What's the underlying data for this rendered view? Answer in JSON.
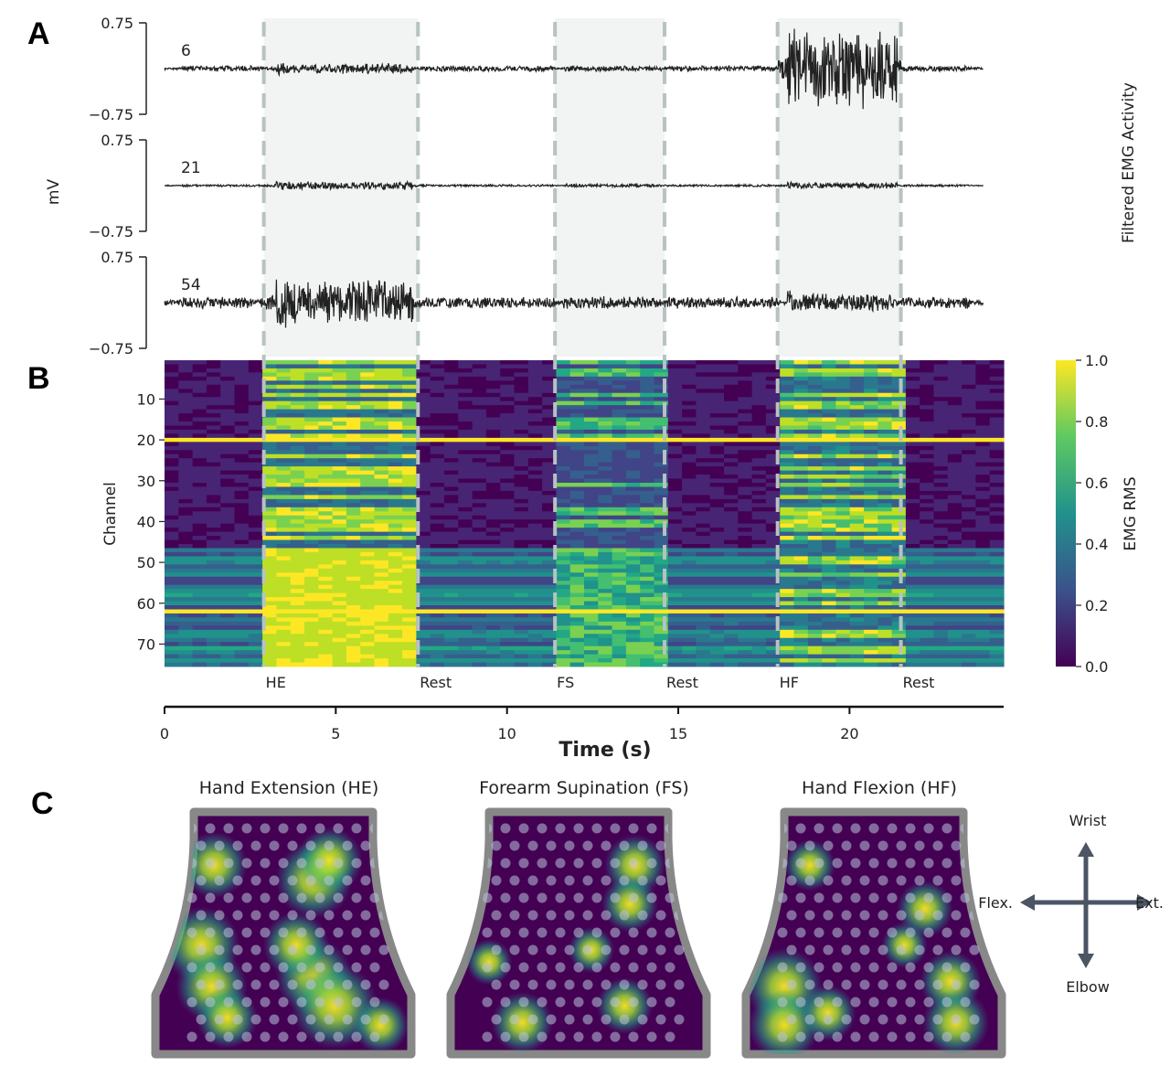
{
  "chart_data": [
    {
      "panel": "A",
      "type": "line",
      "ylabel": "mV",
      "right_label": "Filtered EMG Activity",
      "xlim": [
        0,
        24.5
      ],
      "ylim": [
        -0.75,
        0.75
      ],
      "yticks": [
        "0.75",
        "−0.75"
      ],
      "segments": [
        {
          "label": "HE",
          "start": 2.9,
          "end": 7.4
        },
        {
          "label": "Rest",
          "start": 7.4,
          "end": 11.4
        },
        {
          "label": "FS",
          "start": 11.4,
          "end": 14.6
        },
        {
          "label": "Rest",
          "start": 14.6,
          "end": 17.9
        },
        {
          "label": "HF",
          "start": 17.9,
          "end": 21.5
        },
        {
          "label": "Rest",
          "start": 21.5,
          "end": 24.5
        }
      ],
      "series": [
        {
          "name": "6",
          "baseline_amp": 0.05,
          "segment_amp": {
            "HE": 0.1,
            "FS": 0.05,
            "HF": 0.75
          }
        },
        {
          "name": "21",
          "baseline_amp": 0.02,
          "segment_amp": {
            "HE": 0.08,
            "FS": 0.03,
            "HF": 0.06
          }
        },
        {
          "name": "54",
          "baseline_amp": 0.1,
          "segment_amp": {
            "HE": 0.45,
            "FS": 0.12,
            "HF": 0.18
          }
        }
      ]
    },
    {
      "panel": "B",
      "type": "heatmap",
      "ylabel": "Channel",
      "colorbar_label": "EMG RMS",
      "colorbar_ticks": [
        "0.0",
        "0.2",
        "0.4",
        "0.6",
        "0.8",
        "1.0"
      ],
      "vmin": 0.0,
      "vmax": 1.0,
      "channels": 75,
      "yticks": [
        "10",
        "20",
        "30",
        "40",
        "50",
        "60",
        "70"
      ],
      "highlighted_channels": [
        20,
        62
      ],
      "segment_labels": [
        "HE",
        "Rest",
        "FS",
        "Rest",
        "HF",
        "Rest"
      ],
      "xlabel": "Time (s)",
      "xticks": [
        "0",
        "5",
        "10",
        "15",
        "20"
      ],
      "xlim": [
        0,
        24.5
      ]
    },
    {
      "panel": "C",
      "type": "heatmap",
      "titles": [
        "Hand Extension (HE)",
        "Forearm Supination (FS)",
        "Hand Flexion (HF)"
      ],
      "orientation": {
        "up": "Wrist",
        "down": "Elbow",
        "left": "Flex.",
        "right": "Ext."
      }
    }
  ],
  "labels": {
    "A": "A",
    "B": "B",
    "C": "C"
  },
  "colors": {
    "viridis_low": "#440154",
    "viridis_high": "#fde725",
    "trace": "#222222",
    "segment_shade": "#f2f3f3",
    "dash": "#b7c2c2"
  }
}
